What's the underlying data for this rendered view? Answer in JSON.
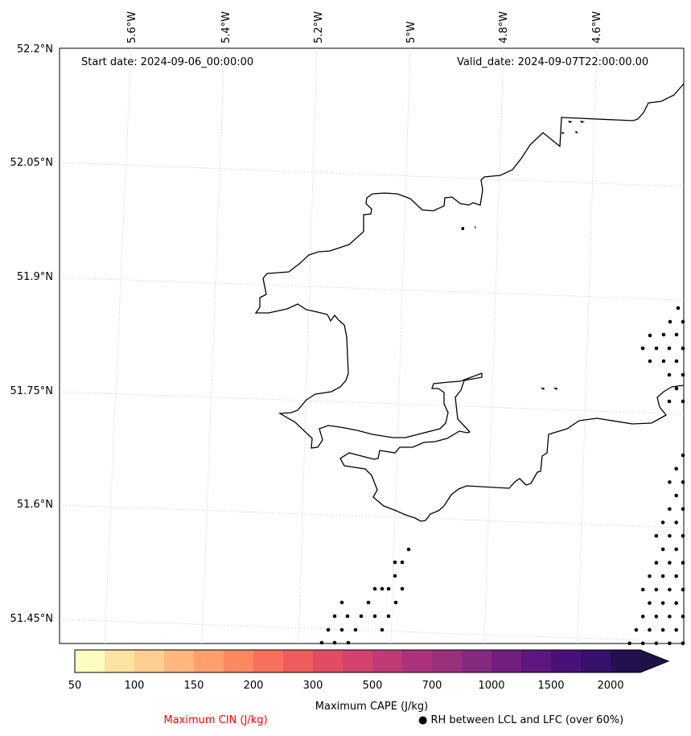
{
  "header": {
    "start_date": "Start date: 2024-09-06_00:00:00",
    "valid_date": "Valid_date: 2024-09-07T22:00:00.00"
  },
  "axes": {
    "lon_labels": [
      "5.6°W",
      "5.4°W",
      "5.2°W",
      "5°W",
      "4.8°W",
      "4.6°W"
    ],
    "lat_labels": [
      "52.2°N",
      "52.05°N",
      "51.9°N",
      "51.75°N",
      "51.6°N",
      "51.45°N"
    ]
  },
  "colorbar": {
    "ticks": [
      "50",
      "100",
      "150",
      "200",
      "300",
      "500",
      "700",
      "1000",
      "1500",
      "2000"
    ],
    "colors": [
      "#fcfdbf",
      "#fde4a3",
      "#fecf92",
      "#feb77e",
      "#fe9f6d",
      "#fc8860",
      "#f7705c",
      "#ef5a5a",
      "#e24c62",
      "#d3436e",
      "#c03a76",
      "#ac337b",
      "#98307c",
      "#852a7f",
      "#711f81",
      "#5d177f",
      "#4a1079",
      "#36106b",
      "#221150"
    ],
    "extend_color": "#1f1147",
    "label": "Maximum CAPE (J/kg)"
  },
  "legend": {
    "cin_label": "Maximum CIN (J/kg)",
    "cin_color": "#ff0000",
    "rh_label": "● RH between LCL and LFC (over 60%)"
  }
}
